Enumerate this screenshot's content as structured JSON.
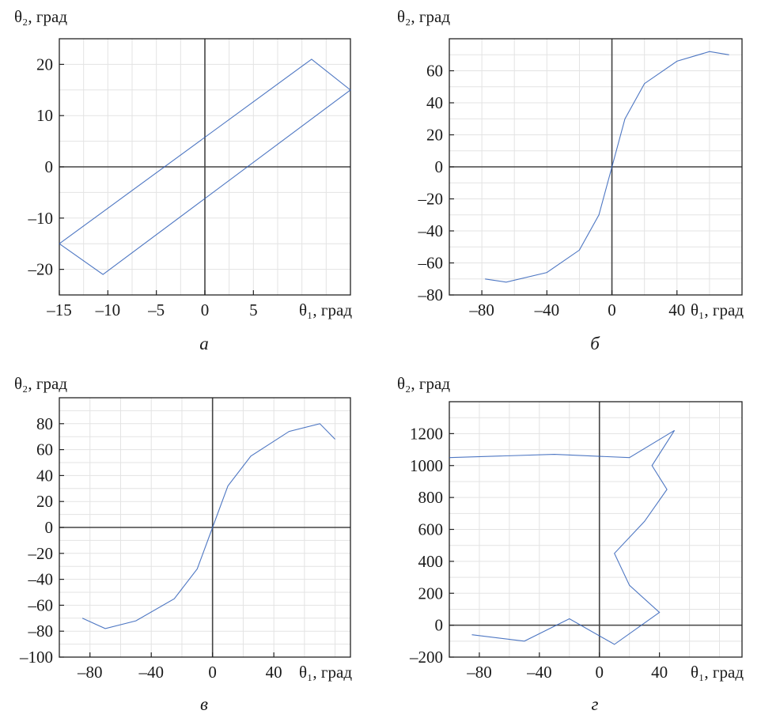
{
  "colors": {
    "curve": "#2f5fb8",
    "grid": "#e3e3e3",
    "frame": "#222222"
  },
  "chart_data": [
    {
      "id": "a",
      "type": "line",
      "subtitle": "а",
      "ylabel": "θ₂, град",
      "xlabel": "θ₁, град",
      "xlim": [
        -15,
        15
      ],
      "ylim": [
        -25,
        25
      ],
      "xticks": [
        -15,
        -10,
        -5,
        0,
        5
      ],
      "yticks": [
        -20,
        -10,
        0,
        10,
        20
      ],
      "xtick_labels": [
        "–15",
        "–10",
        "–5",
        "0",
        "5"
      ],
      "ytick_labels": [
        "–20",
        "–10",
        "0",
        "10",
        "20"
      ],
      "grid": true,
      "series": [
        {
          "x": [
            -15,
            -10.5,
            15,
            11,
            -15
          ],
          "y": [
            -15,
            -21,
            15,
            21,
            -15
          ]
        }
      ]
    },
    {
      "id": "b",
      "type": "line",
      "subtitle": "б",
      "ylabel": "θ₂, град",
      "xlabel": "θ₁, град",
      "xlim": [
        -100,
        80
      ],
      "ylim": [
        -80,
        80
      ],
      "xticks": [
        -80,
        -40,
        0,
        40
      ],
      "yticks": [
        -80,
        -60,
        -40,
        -20,
        0,
        20,
        40,
        60
      ],
      "xtick_labels": [
        "–80",
        "–40",
        "0",
        "40"
      ],
      "ytick_labels": [
        "–80",
        "–60",
        "–40",
        "–20",
        "0",
        "20",
        "40",
        "60"
      ],
      "grid": true,
      "series": [
        {
          "x": [
            -78,
            -65,
            -40,
            -20,
            -8,
            0,
            8,
            20,
            40,
            60,
            72
          ],
          "y": [
            -70,
            -72,
            -66,
            -52,
            -30,
            0,
            30,
            52,
            66,
            72,
            70
          ]
        }
      ]
    },
    {
      "id": "c",
      "type": "line",
      "subtitle": "в",
      "ylabel": "θ₂, град",
      "xlabel": "θ₁, град",
      "xlim": [
        -100,
        90
      ],
      "ylim": [
        -100,
        100
      ],
      "xticks": [
        -80,
        -40,
        0,
        40
      ],
      "yticks": [
        -100,
        -80,
        -60,
        -40,
        -20,
        0,
        20,
        40,
        60,
        80
      ],
      "xtick_labels": [
        "–80",
        "–40",
        "0",
        "40"
      ],
      "ytick_labels": [
        "–100",
        "–80",
        "–60",
        "–40",
        "–20",
        "0",
        "20",
        "40",
        "60",
        "80"
      ],
      "grid": true,
      "series": [
        {
          "x": [
            -85,
            -70,
            -50,
            -25,
            -10,
            0,
            10,
            25,
            50,
            70,
            80
          ],
          "y": [
            -70,
            -78,
            -72,
            -55,
            -32,
            0,
            32,
            55,
            74,
            80,
            68
          ]
        }
      ]
    },
    {
      "id": "d",
      "type": "line",
      "subtitle": "г",
      "ylabel": "θ₂, град",
      "xlabel": "θ₁, град",
      "xlim": [
        -100,
        95
      ],
      "ylim": [
        -200,
        1400
      ],
      "xticks": [
        -80,
        -40,
        0,
        40
      ],
      "yticks": [
        -200,
        0,
        200,
        400,
        600,
        800,
        1000,
        1200
      ],
      "xtick_labels": [
        "–80",
        "–40",
        "0",
        "40"
      ],
      "ytick_labels": [
        "–200",
        "0",
        "200",
        "400",
        "600",
        "800",
        "1000",
        "1200"
      ],
      "grid": true,
      "series": [
        {
          "x": [
            -85,
            -50,
            -20,
            10,
            40,
            20,
            10,
            30,
            45,
            35,
            50,
            20,
            -30,
            -100
          ],
          "y": [
            -60,
            -100,
            40,
            -120,
            80,
            250,
            450,
            650,
            850,
            1000,
            1220,
            1050,
            1070,
            1050
          ]
        }
      ]
    }
  ]
}
